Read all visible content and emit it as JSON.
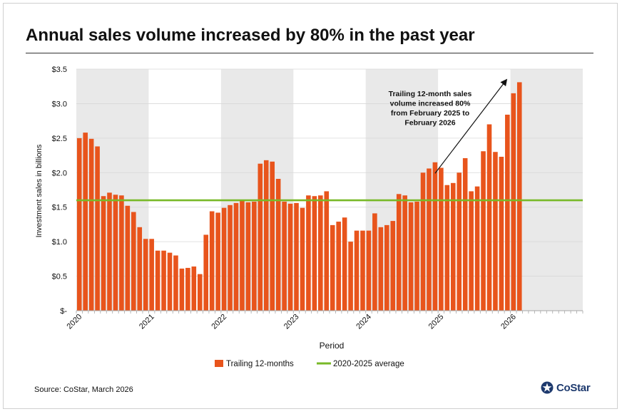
{
  "title": "Annual sales volume increased by 80% in the past year",
  "source": "Source: CoStar, March 2026",
  "logo": {
    "text": "CoStar",
    "icon": "costar-star-icon",
    "color": "#1e3a6e"
  },
  "chart_data": {
    "type": "bar",
    "xlabel": "Period",
    "ylabel": "Investment sales in billions",
    "ylim": [
      0,
      3.5
    ],
    "yticks": [
      0,
      0.5,
      1.0,
      1.5,
      2.0,
      2.5,
      3.0,
      3.5
    ],
    "ytick_labels": [
      "$-",
      "$0.5",
      "$1.0",
      "$1.5",
      "$2.0",
      "$2.5",
      "$3.0",
      "$3.5"
    ],
    "xtick_labels": [
      "2020",
      "2021",
      "2022",
      "2023",
      "2024",
      "2025",
      "2026"
    ],
    "grid": true,
    "legend_position": "bottom",
    "series": [
      {
        "name": "Trailing 12-months",
        "color": "#e8541c",
        "values": [
          2.5,
          2.58,
          2.49,
          2.38,
          1.66,
          1.71,
          1.68,
          1.67,
          1.52,
          1.43,
          1.21,
          1.04,
          1.04,
          0.87,
          0.87,
          0.84,
          0.8,
          0.61,
          0.62,
          0.64,
          0.53,
          1.1,
          1.44,
          1.42,
          1.49,
          1.53,
          1.56,
          1.59,
          1.57,
          1.58,
          2.13,
          2.18,
          2.16,
          1.91,
          1.58,
          1.55,
          1.56,
          1.49,
          1.67,
          1.66,
          1.67,
          1.73,
          1.24,
          1.29,
          1.35,
          1.0,
          1.16,
          1.16,
          1.16,
          1.41,
          1.21,
          1.24,
          1.3,
          1.69,
          1.67,
          1.57,
          1.58,
          2.0,
          2.06,
          2.15,
          2.07,
          1.82,
          1.85,
          2.0,
          2.21,
          1.73,
          1.8,
          2.31,
          2.7,
          2.3,
          2.23,
          2.84,
          3.15,
          3.31
        ]
      },
      {
        "name": "2020-2025 average",
        "color": "#78b928",
        "type": "line",
        "value": 1.6
      }
    ],
    "annotation": {
      "lines": [
        "Trailing 12-month sales",
        "volume increased 80%",
        "from February 2025 to",
        "February 2026"
      ]
    }
  }
}
